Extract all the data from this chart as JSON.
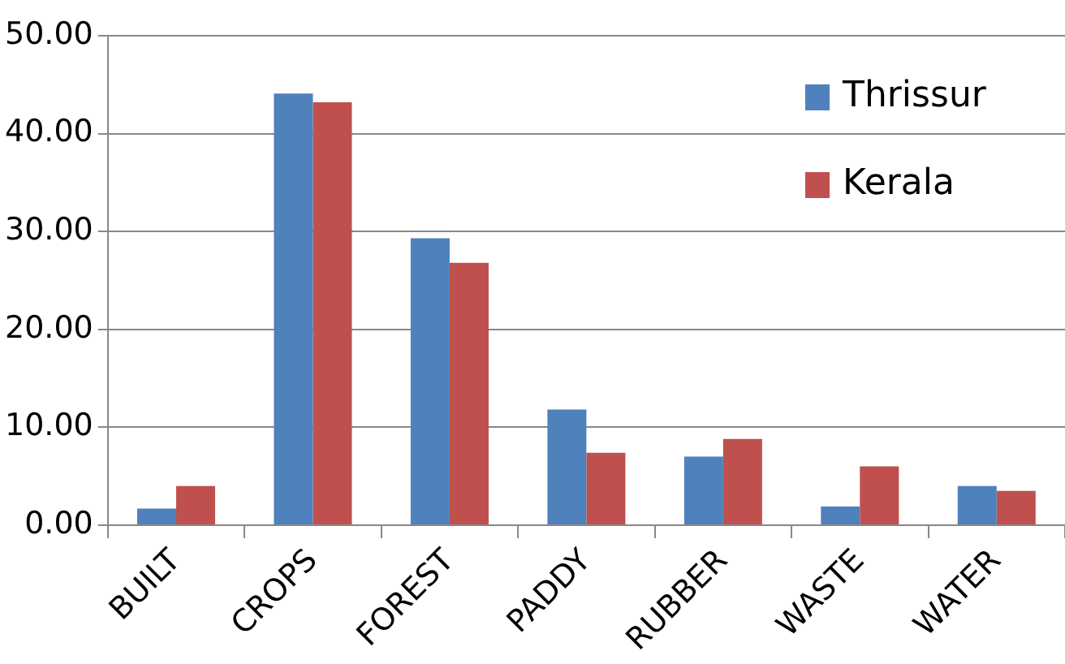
{
  "chart_data": {
    "type": "bar",
    "categories": [
      "BUILT",
      "CROPS",
      "FOREST",
      "PADDY",
      "RUBBER",
      "WASTE",
      "WATER"
    ],
    "series": [
      {
        "name": "Thrissur",
        "color": "#4f81bd",
        "values": [
          1.7,
          44.1,
          29.3,
          11.8,
          7.0,
          1.9,
          4.0
        ]
      },
      {
        "name": "Kerala",
        "color": "#c0504d",
        "values": [
          4.0,
          43.2,
          26.8,
          7.4,
          8.8,
          6.0,
          3.5
        ]
      }
    ],
    "ylim": [
      0,
      50
    ],
    "yticks": [
      {
        "value": 0,
        "label": "0.00"
      },
      {
        "value": 10,
        "label": "10.00"
      },
      {
        "value": 20,
        "label": "20.00"
      },
      {
        "value": 30,
        "label": "30.00"
      },
      {
        "value": 40,
        "label": "40.00"
      },
      {
        "value": 50,
        "label": "50.00"
      }
    ],
    "grid": "y",
    "legend": "top right"
  }
}
